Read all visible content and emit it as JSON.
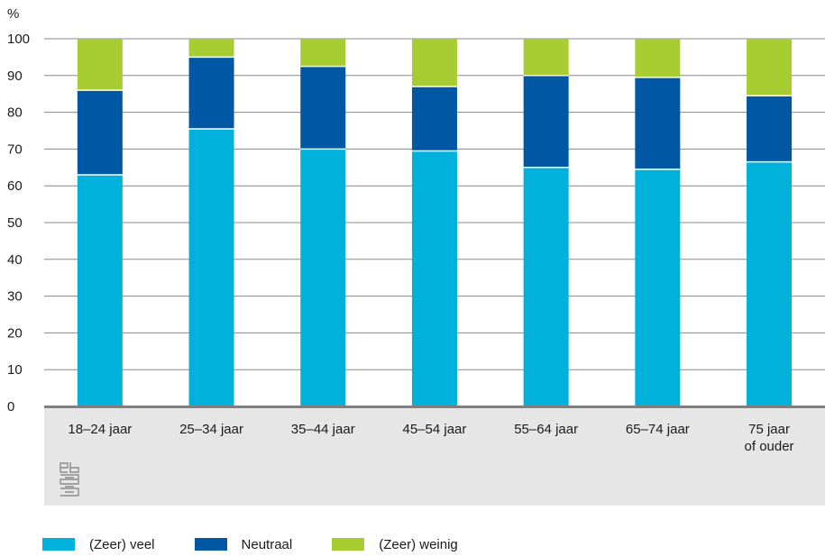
{
  "chart_data": {
    "type": "bar",
    "stacked": true,
    "y_unit_label": "%",
    "ylim": [
      0,
      100
    ],
    "yticks": [
      0,
      10,
      20,
      30,
      40,
      50,
      60,
      70,
      80,
      90,
      100
    ],
    "grid": true,
    "legend_position": "bottom",
    "categories": [
      [
        "18–24 jaar"
      ],
      [
        "25–34 jaar"
      ],
      [
        "35–44 jaar"
      ],
      [
        "45–54 jaar"
      ],
      [
        "55–64 jaar"
      ],
      [
        "65–74 jaar"
      ],
      [
        "75 jaar",
        "of ouder"
      ]
    ],
    "series": [
      {
        "name": "(Zeer) veel",
        "color": "#00b1dc",
        "values": [
          63,
          75.5,
          70,
          69.5,
          65,
          64.5,
          66.5
        ]
      },
      {
        "name": "Neutraal",
        "color": "#0058a4",
        "values": [
          23,
          19.5,
          22.5,
          17.5,
          25,
          25,
          18
        ]
      },
      {
        "name": "(Zeer) weinig",
        "color": "#a8cd33",
        "values": [
          14,
          5,
          7.5,
          13,
          10,
          10.5,
          15.5
        ]
      }
    ]
  },
  "colors": {
    "grid": "#888888",
    "axis": "#7f7f7f",
    "category_band": "#e6e6e7"
  },
  "icons": {
    "logo": "cbs-logo-icon"
  }
}
